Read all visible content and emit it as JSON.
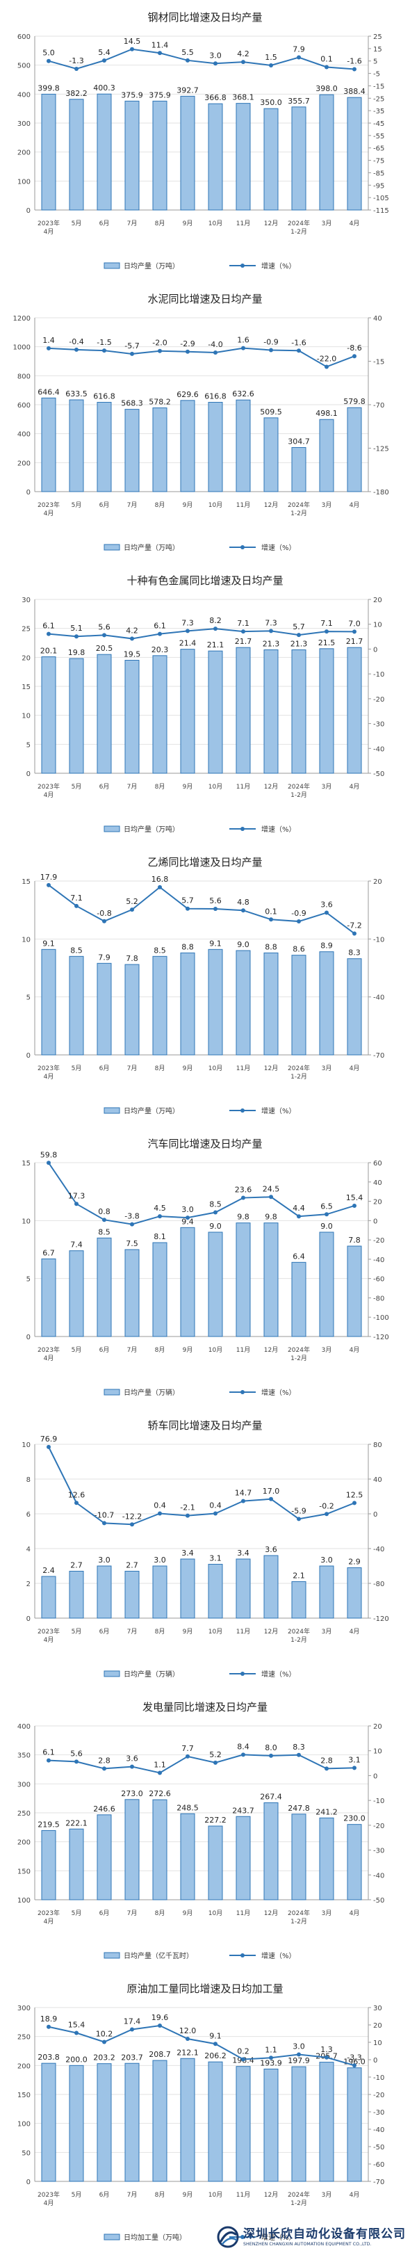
{
  "colors": {
    "bar": "#9dc3e6",
    "barStroke": "#2e75b6",
    "line": "#2e75b6",
    "grid": "#e2e2e2"
  },
  "chart_data": [
    {
      "type": "bar+line",
      "title": "钢材同比增速及日均产量",
      "categories": [
        "2023年\n4月",
        "5月",
        "6月",
        "7月",
        "8月",
        "9月",
        "10月",
        "11月",
        "12月",
        "2024年\n1-2月",
        "3月",
        "4月"
      ],
      "series": [
        {
          "name": "日均产量（万吨）",
          "type": "bar",
          "axis": "left",
          "values": [
            399.8,
            382.2,
            400.3,
            375.9,
            375.9,
            392.7,
            366.8,
            368.1,
            350.0,
            355.7,
            398.0,
            388.4
          ]
        },
        {
          "name": "增速（%）",
          "type": "line",
          "axis": "right",
          "values": [
            5.0,
            -1.3,
            5.4,
            14.5,
            11.4,
            5.5,
            3.0,
            4.2,
            1.5,
            7.9,
            0.1,
            -1.6
          ]
        }
      ],
      "left_ticks": [
        0,
        100,
        200,
        300,
        400,
        500,
        600
      ],
      "right_ticks": [
        25,
        15,
        5,
        -5,
        -15,
        -25,
        -35,
        -45,
        -55,
        -65,
        -75,
        -85,
        -95,
        -105,
        -115
      ]
    },
    {
      "type": "bar+line",
      "title": "水泥同比增速及日均产量",
      "categories": [
        "2023年\n4月",
        "5月",
        "6月",
        "7月",
        "8月",
        "9月",
        "10月",
        "11月",
        "12月",
        "2024年\n1-2月",
        "3月",
        "4月"
      ],
      "series": [
        {
          "name": "日均产量（万吨）",
          "type": "bar",
          "axis": "left",
          "values": [
            646.4,
            633.5,
            616.8,
            568.3,
            578.2,
            629.6,
            616.8,
            632.6,
            509.5,
            304.7,
            498.1,
            579.8
          ]
        },
        {
          "name": "增速（%）",
          "type": "line",
          "axis": "right",
          "values": [
            1.4,
            -0.4,
            -1.5,
            -5.7,
            -2.0,
            -2.9,
            -4.0,
            1.6,
            -0.9,
            -1.6,
            -22.0,
            -8.6
          ]
        }
      ],
      "left_ticks": [
        0,
        200,
        400,
        600,
        800,
        1000,
        1200
      ],
      "right_ticks": [
        40,
        -15,
        -70,
        -125,
        -180
      ]
    },
    {
      "type": "bar+line",
      "title": "十种有色金属同比增速及日均产量",
      "categories": [
        "2023年\n4月",
        "5月",
        "6月",
        "7月",
        "8月",
        "9月",
        "10月",
        "11月",
        "12月",
        "2024年\n1-2月",
        "3月",
        "4月"
      ],
      "series": [
        {
          "name": "日均产量（万吨）",
          "type": "bar",
          "axis": "left",
          "values": [
            20.1,
            19.8,
            20.5,
            19.5,
            20.3,
            21.4,
            21.1,
            21.7,
            21.3,
            21.3,
            21.5,
            21.7
          ]
        },
        {
          "name": "增速（%）",
          "type": "line",
          "axis": "right",
          "values": [
            6.1,
            5.1,
            5.6,
            4.2,
            6.1,
            7.3,
            8.2,
            7.1,
            7.3,
            5.7,
            7.1,
            7.0
          ]
        }
      ],
      "left_ticks": [
        0,
        5,
        10,
        15,
        20,
        25,
        30
      ],
      "right_ticks": [
        20,
        10,
        0,
        -10,
        -20,
        -30,
        -40,
        -50
      ]
    },
    {
      "type": "bar+line",
      "title": "乙烯同比增速及日均产量",
      "categories": [
        "2023年\n4月",
        "5月",
        "6月",
        "7月",
        "8月",
        "9月",
        "10月",
        "11月",
        "12月",
        "2024年\n1-2月",
        "3月",
        "4月"
      ],
      "series": [
        {
          "name": "日均产量（万吨）",
          "type": "bar",
          "axis": "left",
          "values": [
            9.1,
            8.5,
            7.9,
            7.8,
            8.5,
            8.8,
            9.1,
            9.0,
            8.8,
            8.6,
            8.9,
            8.3
          ]
        },
        {
          "name": "增速（%）",
          "type": "line",
          "axis": "right",
          "values": [
            17.9,
            7.1,
            -0.8,
            5.2,
            16.8,
            5.7,
            5.6,
            4.8,
            0.1,
            -0.9,
            3.6,
            -7.2
          ]
        }
      ],
      "left_ticks": [
        0,
        5,
        10,
        15
      ],
      "right_ticks": [
        20,
        -10,
        -40,
        -70
      ]
    },
    {
      "type": "bar+line",
      "title": "汽车同比增速及日均产量",
      "categories": [
        "2023年\n4月",
        "5月",
        "6月",
        "7月",
        "8月",
        "9月",
        "10月",
        "11月",
        "12月",
        "2024年\n1-2月",
        "3月",
        "4月"
      ],
      "series": [
        {
          "name": "日均产量（万辆）",
          "type": "bar",
          "axis": "left",
          "values": [
            6.7,
            7.4,
            8.5,
            7.5,
            8.1,
            9.4,
            9.0,
            9.8,
            9.8,
            6.4,
            9.0,
            7.8
          ]
        },
        {
          "name": "增速（%）",
          "type": "line",
          "axis": "right",
          "values": [
            59.8,
            17.3,
            0.8,
            -3.8,
            4.5,
            3.0,
            8.5,
            23.6,
            24.5,
            4.4,
            6.5,
            15.4
          ]
        }
      ],
      "left_ticks": [
        0,
        5,
        10,
        15
      ],
      "right_ticks": [
        60,
        40,
        20,
        0,
        -20,
        -40,
        -60,
        -80,
        -100,
        -120
      ]
    },
    {
      "type": "bar+line",
      "title": "轿车同比增速及日均产量",
      "categories": [
        "2023年\n4月",
        "5月",
        "6月",
        "7月",
        "8月",
        "9月",
        "10月",
        "11月",
        "12月",
        "2024年\n1-2月",
        "3月",
        "4月"
      ],
      "series": [
        {
          "name": "日均产量（万辆）",
          "type": "bar",
          "axis": "left",
          "values": [
            2.4,
            2.7,
            3.0,
            2.7,
            3.0,
            3.4,
            3.1,
            3.4,
            3.6,
            2.1,
            3.0,
            2.9
          ]
        },
        {
          "name": "增速（%）",
          "type": "line",
          "axis": "right",
          "values": [
            76.9,
            12.6,
            -10.7,
            -12.2,
            0.4,
            -2.1,
            0.4,
            14.7,
            17.0,
            -5.9,
            -0.2,
            12.5
          ]
        }
      ],
      "left_ticks": [
        0,
        2,
        4,
        6,
        8,
        10
      ],
      "right_ticks": [
        80,
        40,
        0,
        -40,
        -80,
        -120
      ]
    },
    {
      "type": "bar+line",
      "title": "发电量同比增速及日均产量",
      "categories": [
        "2023年\n4月",
        "5月",
        "6月",
        "7月",
        "8月",
        "9月",
        "10月",
        "11月",
        "12月",
        "2024年\n1-2月",
        "3月",
        "4月"
      ],
      "series": [
        {
          "name": "日均产量（亿千瓦时）",
          "type": "bar",
          "axis": "left",
          "values": [
            219.5,
            222.1,
            246.6,
            273.0,
            272.6,
            248.5,
            227.2,
            243.7,
            267.4,
            247.8,
            241.2,
            230.0
          ]
        },
        {
          "name": "增速（%）",
          "type": "line",
          "axis": "right",
          "values": [
            6.1,
            5.6,
            2.8,
            3.6,
            1.1,
            7.7,
            5.2,
            8.4,
            8.0,
            8.3,
            2.8,
            3.1
          ]
        }
      ],
      "left_ticks": [
        100,
        150,
        200,
        250,
        300,
        350,
        400
      ],
      "right_ticks": [
        20,
        10,
        0,
        -10,
        -20,
        -30,
        -40,
        -50
      ]
    },
    {
      "type": "bar+line",
      "title": "原油加工量同比增速及日均加工量",
      "categories": [
        "2023年\n4月",
        "5月",
        "6月",
        "7月",
        "8月",
        "9月",
        "10月",
        "11月",
        "12月",
        "2024年\n1-2月",
        "3月",
        "4月"
      ],
      "series": [
        {
          "name": "日均加工量（万吨）",
          "type": "bar",
          "axis": "left",
          "values": [
            203.8,
            200.0,
            203.2,
            203.7,
            208.7,
            212.1,
            206.2,
            198.4,
            193.9,
            197.9,
            205.7,
            196.0
          ]
        },
        {
          "name": "增速（%）",
          "type": "line",
          "axis": "right",
          "values": [
            18.9,
            15.4,
            10.2,
            17.4,
            19.6,
            12.0,
            9.1,
            0.2,
            1.1,
            3.0,
            1.3,
            -3.3
          ]
        }
      ],
      "left_ticks": [
        0,
        50,
        100,
        150,
        200,
        250,
        300
      ],
      "right_ticks": [
        30,
        20,
        10,
        0,
        -10,
        -20,
        -30,
        -40,
        -50,
        -60,
        -70
      ]
    }
  ],
  "footer": {
    "brand_cn": "深圳长欣自动化设备有限公司",
    "brand_en": "SHENZHEN CHANGXIN AUTOMATION EQUIPMENT CO.,LTD."
  }
}
